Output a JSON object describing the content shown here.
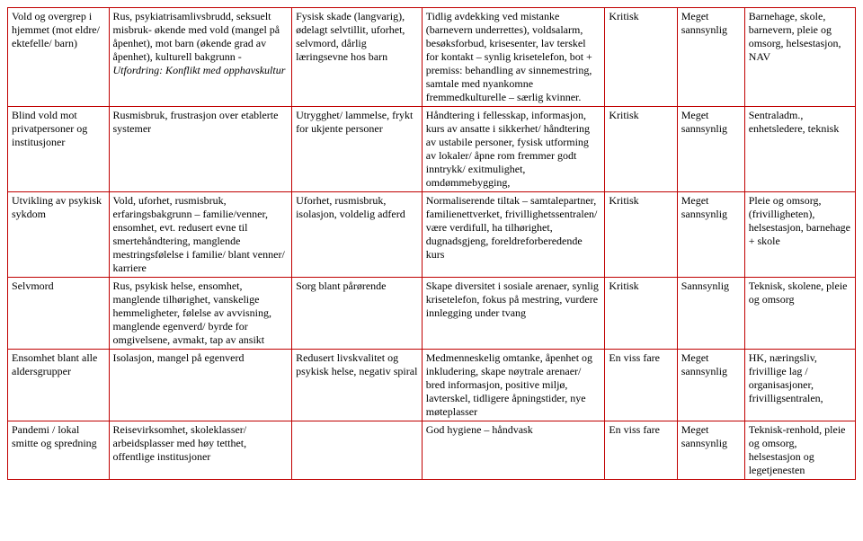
{
  "rows": [
    {
      "c1": "Vold og overgrep i hjemmet (mot eldre/ ektefelle/ barn)",
      "c2": "Rus, psykiatrisamlivsbrudd, seksuelt misbruk- økende med vold (mangel på åpenhet), mot barn (økende grad av åpenhet), kulturell bakgrunn - Utfordring: Konflikt med opphavskultur",
      "c2_italic": "Utfordring: Konflikt med opphavskultur",
      "c3": "Fysisk skade (langvarig), ødelagt selvtillit, uforhet, selvmord, dårlig læringsevne hos barn",
      "c4": "Tidlig avdekking ved mistanke (barnevern underrettes), voldsalarm, besøksforbud, krisesenter, lav terskel for kontakt – synlig krisetelefon, bot + premiss: behandling av sinnemestring, samtale med nyankomne fremmedkulturelle – særlig kvinner.",
      "c5": "Kritisk",
      "c6": "Meget sannsynlig",
      "c7": "Barnehage, skole, barnevern, pleie og omsorg, helsestasjon, NAV"
    },
    {
      "c1": "Blind vold mot privatpersoner og institusjoner",
      "c2": "Rusmisbruk, frustrasjon over etablerte systemer",
      "c3": "Utrygghet/ lammelse, frykt for ukjente personer",
      "c4": "Håndtering i fellesskap, informasjon, kurs av ansatte i sikkerhet/ håndtering av ustabile personer, fysisk utforming av lokaler/ åpne rom fremmer godt inntrykk/ exitmulighet, omdømmebygging,",
      "c5": "Kritisk",
      "c6": "Meget sannsynlig",
      "c7": "Sentraladm., enhetsledere, teknisk"
    },
    {
      "c1": "Utvikling av psykisk sykdom",
      "c2": "Vold, uforhet, rusmisbruk, erfaringsbakgrunn – familie/venner, ensomhet, evt. redusert evne til smertehåndtering, manglende mestringsfølelse i familie/ blant venner/ karriere",
      "c3": "Uforhet, rusmisbruk, isolasjon, voldelig adferd",
      "c4": "Normaliserende tiltak – samtalepartner, familienettverket, frivillighetssentralen/ være verdifull, ha tilhørighet, dugnadsgjeng, foreldreforberedende kurs",
      "c5": "Kritisk",
      "c6": "Meget sannsynlig",
      "c7": "Pleie og omsorg, (frivilligheten), helsestasjon, barnehage + skole"
    },
    {
      "c1": "Selvmord",
      "c2": "Rus, psykisk helse, ensomhet, manglende tilhørighet, vanskelige hemmeligheter, følelse av avvisning, manglende egenverd/ byrde for omgivelsene, avmakt, tap av ansikt",
      "c3": "Sorg blant pårørende",
      "c4": "Skape diversitet i sosiale arenaer, synlig krisetelefon, fokus på mestring, vurdere innlegging under tvang",
      "c5": "Kritisk",
      "c6": "Sannsynlig",
      "c7": "Teknisk, skolene, pleie og omsorg"
    },
    {
      "c1": "Ensomhet blant alle aldersgrupper",
      "c2": "Isolasjon, mangel på egenverd",
      "c3": "Redusert livskvalitet og psykisk helse, negativ spiral",
      "c4": "Medmenneskelig omtanke, åpenhet og inkludering, skape nøytrale arenaer/ bred informasjon, positive miljø, lavterskel, tidligere åpningstider, nye møteplasser",
      "c5": "En viss fare",
      "c6": "Meget sannsynlig",
      "c7": "HK, næringsliv, frivillige lag / organisasjoner, frivilligsentralen,"
    },
    {
      "c1": "Pandemi / lokal smitte og spredning",
      "c2": "Reisevirksomhet, skoleklasser/ arbeidsplasser med høy tetthet, offentlige institusjoner",
      "c3": "",
      "c4": "God hygiene – håndvask",
      "c5": "En viss fare",
      "c6": "Meget sannsynlig",
      "c7": "Teknisk-renhold, pleie og omsorg, helsestasjon og legetjenesten"
    }
  ]
}
